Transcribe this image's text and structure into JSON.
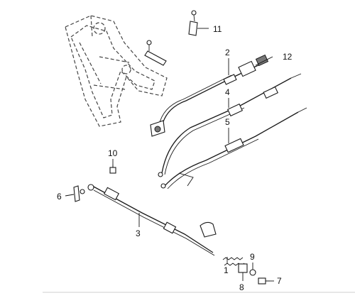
{
  "callouts": [
    {
      "id": "1",
      "label": "1"
    },
    {
      "id": "2",
      "label": "2"
    },
    {
      "id": "3",
      "label": "3"
    },
    {
      "id": "4",
      "label": "4"
    },
    {
      "id": "5",
      "label": "5"
    },
    {
      "id": "6",
      "label": "6"
    },
    {
      "id": "7",
      "label": "7"
    },
    {
      "id": "8",
      "label": "8"
    },
    {
      "id": "9",
      "label": "9"
    },
    {
      "id": "10",
      "label": "10"
    },
    {
      "id": "11",
      "label": "11"
    },
    {
      "id": "12",
      "label": "12"
    }
  ]
}
